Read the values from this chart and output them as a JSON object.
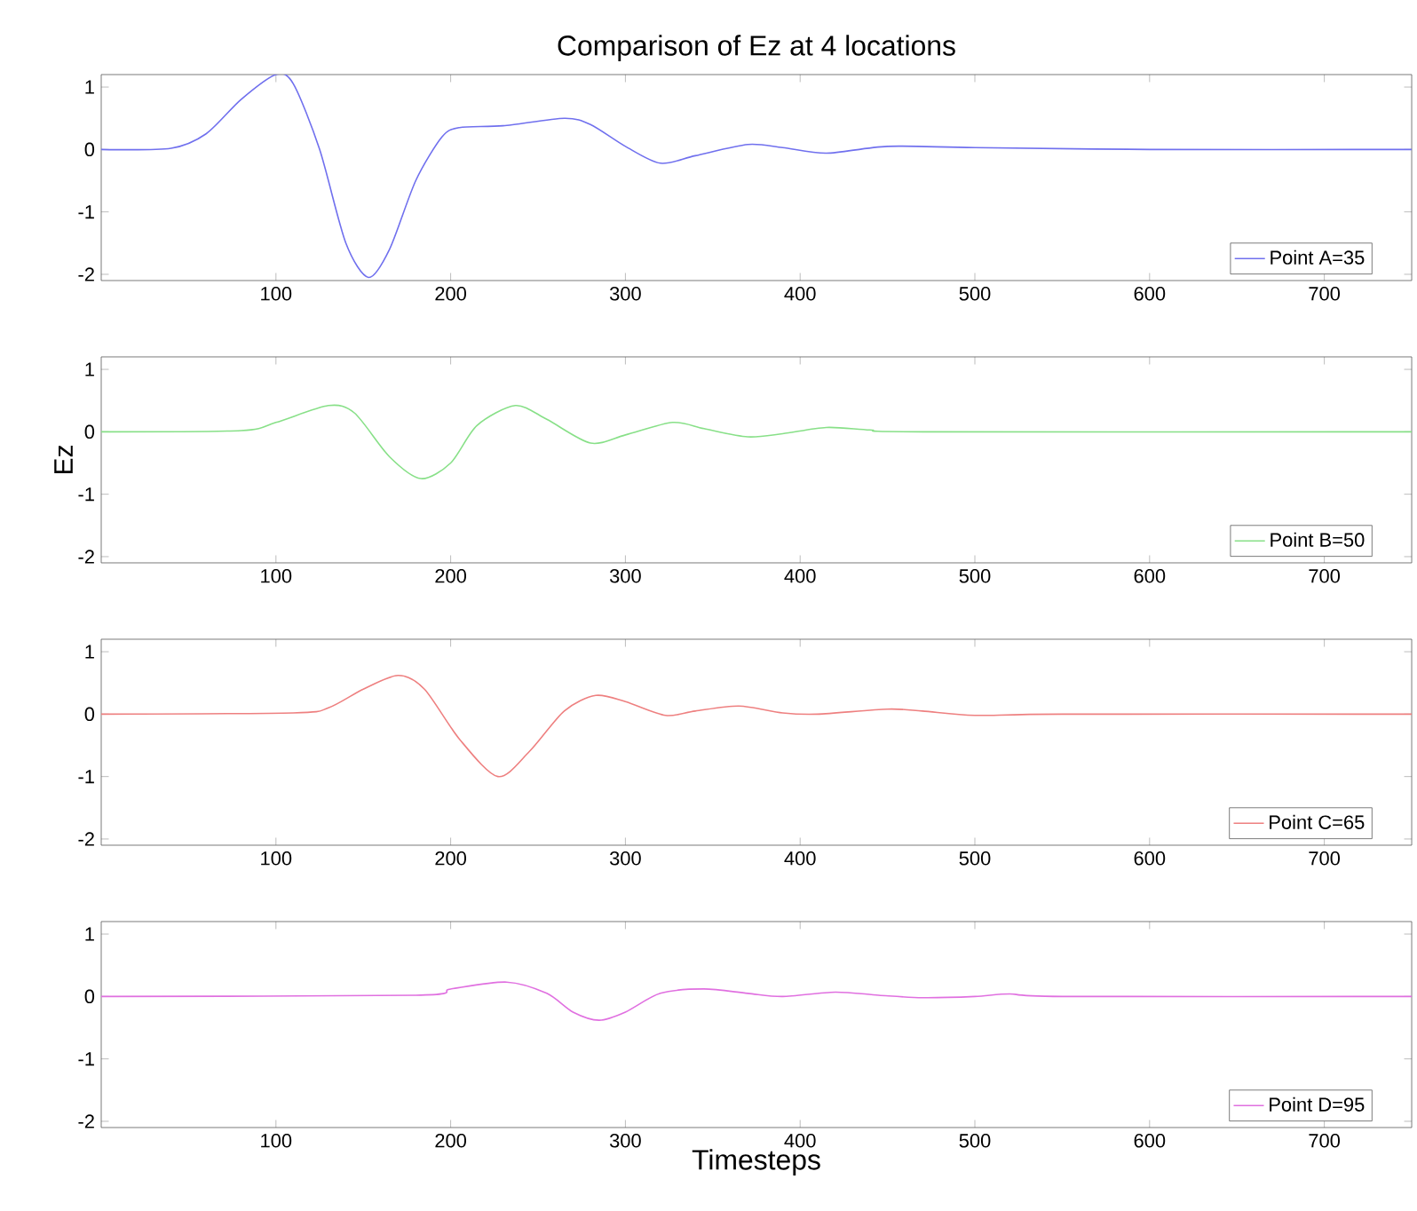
{
  "chart_data": [
    {
      "type": "line",
      "title": "Comparison of Ez at 4 locations",
      "xlim": [
        0,
        750
      ],
      "ylim": [
        -2.1,
        1.2
      ],
      "xticks": [
        100,
        200,
        300,
        400,
        500,
        600,
        700
      ],
      "yticks": [
        -2,
        -1,
        0,
        1
      ],
      "legend": "bottom right",
      "series": [
        {
          "name": "Point A=35",
          "color": "#7070ee",
          "x": [
            0,
            40,
            60,
            80,
            100,
            110,
            125,
            140,
            153,
            165,
            180,
            195,
            205,
            230,
            265,
            280,
            300,
            320,
            340,
            370,
            390,
            415,
            450,
            500,
            600,
            750
          ],
          "values": [
            0,
            0.02,
            0.25,
            0.8,
            1.2,
            1.05,
            0,
            -1.5,
            -2.05,
            -1.6,
            -0.5,
            0.2,
            0.35,
            0.38,
            0.5,
            0.4,
            0.05,
            -0.22,
            -0.1,
            0.08,
            0.03,
            -0.06,
            0.05,
            0.03,
            0,
            0
          ]
        }
      ]
    },
    {
      "type": "line",
      "ylabel": "Ez",
      "xlim": [
        0,
        750
      ],
      "ylim": [
        -2.1,
        1.2
      ],
      "xticks": [
        100,
        200,
        300,
        400,
        500,
        600,
        700
      ],
      "yticks": [
        -2,
        -1,
        0,
        1
      ],
      "legend": "bottom right",
      "series": [
        {
          "name": "Point B=50",
          "color": "#88e088",
          "x": [
            0,
            80,
            100,
            130,
            145,
            165,
            183,
            200,
            215,
            237,
            255,
            280,
            300,
            327,
            345,
            370,
            390,
            415,
            440,
            470,
            750
          ],
          "values": [
            0,
            0.02,
            0.15,
            0.42,
            0.3,
            -0.4,
            -0.75,
            -0.5,
            0.1,
            0.42,
            0.2,
            -0.18,
            -0.05,
            0.15,
            0.05,
            -0.08,
            -0.03,
            0.07,
            0.03,
            0,
            0
          ]
        }
      ]
    },
    {
      "type": "line",
      "xlim": [
        0,
        750
      ],
      "ylim": [
        -2.1,
        1.2
      ],
      "xticks": [
        100,
        200,
        300,
        400,
        500,
        600,
        700
      ],
      "yticks": [
        -2,
        -1,
        0,
        1
      ],
      "legend": "bottom right",
      "series": [
        {
          "name": "Point C=65",
          "color": "#ee8080",
          "x": [
            0,
            110,
            130,
            150,
            170,
            185,
            205,
            227,
            245,
            265,
            283,
            300,
            323,
            340,
            365,
            390,
            410,
            450,
            470,
            500,
            550,
            750
          ],
          "values": [
            0,
            0.02,
            0.1,
            0.4,
            0.62,
            0.4,
            -0.4,
            -1.0,
            -0.6,
            0.05,
            0.3,
            0.2,
            -0.02,
            0.05,
            0.13,
            0.02,
            0,
            0.08,
            0.05,
            -0.02,
            0,
            0
          ]
        }
      ]
    },
    {
      "type": "line",
      "xlabel": "Timesteps",
      "xlim": [
        0,
        750
      ],
      "ylim": [
        -2.1,
        1.2
      ],
      "xticks": [
        100,
        200,
        300,
        400,
        500,
        600,
        700
      ],
      "yticks": [
        -2,
        -1,
        0,
        1
      ],
      "legend": "bottom right",
      "series": [
        {
          "name": "Point D=95",
          "color": "#e070e0",
          "x": [
            0,
            180,
            200,
            232,
            255,
            270,
            285,
            300,
            320,
            345,
            370,
            390,
            420,
            445,
            470,
            500,
            520,
            550,
            750
          ],
          "values": [
            0,
            0.02,
            0.12,
            0.23,
            0.05,
            -0.25,
            -0.38,
            -0.25,
            0.05,
            0.12,
            0.05,
            0,
            0.07,
            0.02,
            -0.02,
            0,
            0.04,
            0,
            0
          ]
        }
      ]
    }
  ]
}
